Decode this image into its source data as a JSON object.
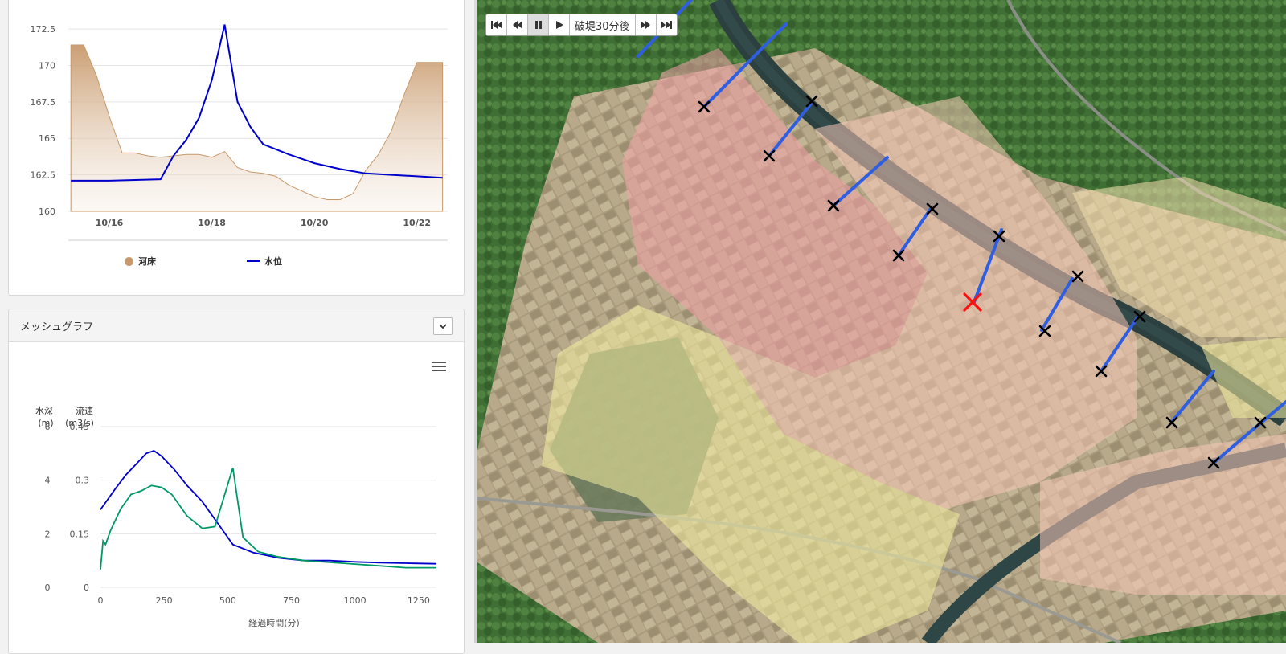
{
  "river_chart": {
    "y_ticks": [
      "172.5",
      "170",
      "167.5",
      "165",
      "162.5",
      "160"
    ],
    "x_ticks": [
      "10/16",
      "10/18",
      "10/20",
      "10/22"
    ],
    "legend": [
      {
        "label": "河床",
        "color": "#c8996b"
      },
      {
        "label": "水位",
        "color": "#0000cc"
      }
    ]
  },
  "mesh_panel": {
    "title": "メッシュグラフ",
    "collapse_icon": "chevron-down-icon",
    "menu_icon": "hamburger-menu-icon"
  },
  "mesh_chart": {
    "y1_title_line1": "水深",
    "y1_title_line2": "(m)",
    "y2_title_line1": "流速",
    "y2_title_line2": "(m3/s)",
    "y1_ticks": [
      "6",
      "4",
      "2",
      "0"
    ],
    "y2_ticks": [
      "0.45",
      "0.3",
      "0.15",
      "0"
    ],
    "x_ticks": [
      "0",
      "250",
      "500",
      "750",
      "1000",
      "1250"
    ],
    "xlabel": "経過時間(分)"
  },
  "player": {
    "first_icon": "skip-to-start-icon",
    "back_icon": "step-back-icon",
    "pause_icon": "pause-icon",
    "play_icon": "play-icon",
    "label": "破堤30分後",
    "forward_icon": "step-forward-icon",
    "last_icon": "skip-to-end-icon"
  },
  "chart_data": [
    {
      "type": "area",
      "title": "",
      "xlabel": "",
      "ylabel": "",
      "ylim": [
        160,
        173
      ],
      "x_unit": "date",
      "series": [
        {
          "name": "河床",
          "x": [
            "10/15 06:00",
            "10/15 12:00",
            "10/15 18:00",
            "10/16 00:00",
            "10/16 06:00",
            "10/16 12:00",
            "10/16 18:00",
            "10/17 00:00",
            "10/17 06:00",
            "10/17 12:00",
            "10/17 18:00",
            "10/18 00:00",
            "10/18 06:00",
            "10/18 12:00",
            "10/18 18:00",
            "10/19 00:00",
            "10/19 06:00",
            "10/19 12:00",
            "10/19 18:00",
            "10/20 00:00",
            "10/20 06:00",
            "10/20 12:00",
            "10/20 18:00",
            "10/21 00:00",
            "10/21 06:00",
            "10/21 12:00",
            "10/21 18:00",
            "10/22 00:00",
            "10/22 12:00"
          ],
          "values": [
            171.4,
            171.4,
            169.3,
            166.5,
            164.0,
            164.0,
            163.8,
            163.7,
            163.8,
            163.9,
            163.9,
            163.7,
            164.1,
            163.0,
            162.7,
            162.6,
            162.4,
            161.8,
            161.4,
            161.0,
            160.8,
            160.8,
            161.2,
            162.8,
            163.9,
            165.5,
            168.0,
            170.2,
            170.2
          ]
        },
        {
          "name": "水位",
          "x": [
            "10/15 06:00",
            "10/16 00:00",
            "10/17 00:00",
            "10/17 06:00",
            "10/17 12:00",
            "10/17 18:00",
            "10/18 00:00",
            "10/18 06:00",
            "10/18 12:00",
            "10/18 18:00",
            "10/19 00:00",
            "10/19 12:00",
            "10/20 00:00",
            "10/20 12:00",
            "10/21 00:00",
            "10/21 12:00",
            "10/22 00:00",
            "10/22 12:00"
          ],
          "values": [
            162.1,
            162.1,
            162.2,
            163.8,
            164.9,
            166.4,
            169.0,
            172.8,
            167.5,
            165.8,
            164.6,
            163.9,
            163.3,
            162.9,
            162.6,
            162.5,
            162.4,
            162.3
          ]
        }
      ]
    },
    {
      "type": "line",
      "title": "",
      "xlabel": "経過時間(分)",
      "ylabel": "水深 (m) / 流速 (m3/s)",
      "xlim": [
        0,
        1320
      ],
      "ylim": [
        0,
        6
      ],
      "y2lim": [
        0,
        0.45
      ],
      "series": [
        {
          "name": "水深",
          "axis": "y1",
          "color": "#0000cc",
          "x": [
            0,
            30,
            60,
            100,
            140,
            180,
            210,
            240,
            290,
            340,
            400,
            460,
            520,
            600,
            700,
            800,
            900,
            1000,
            1100,
            1200,
            1320
          ],
          "values": [
            2.9,
            3.3,
            3.7,
            4.2,
            4.6,
            5.0,
            5.1,
            4.9,
            4.4,
            3.8,
            3.2,
            2.4,
            1.6,
            1.3,
            1.1,
            1.0,
            1.0,
            0.95,
            0.92,
            0.9,
            0.88
          ]
        },
        {
          "name": "流速",
          "axis": "y2",
          "color": "#009966",
          "x": [
            0,
            10,
            20,
            40,
            80,
            120,
            160,
            200,
            240,
            280,
            340,
            400,
            450,
            520,
            560,
            620,
            700,
            800,
            900,
            1000,
            1100,
            1200,
            1320
          ],
          "values": [
            0.05,
            0.13,
            0.12,
            0.16,
            0.22,
            0.26,
            0.27,
            0.285,
            0.28,
            0.26,
            0.2,
            0.165,
            0.17,
            0.335,
            0.14,
            0.1,
            0.085,
            0.075,
            0.07,
            0.065,
            0.06,
            0.055,
            0.055
          ]
        }
      ]
    }
  ]
}
